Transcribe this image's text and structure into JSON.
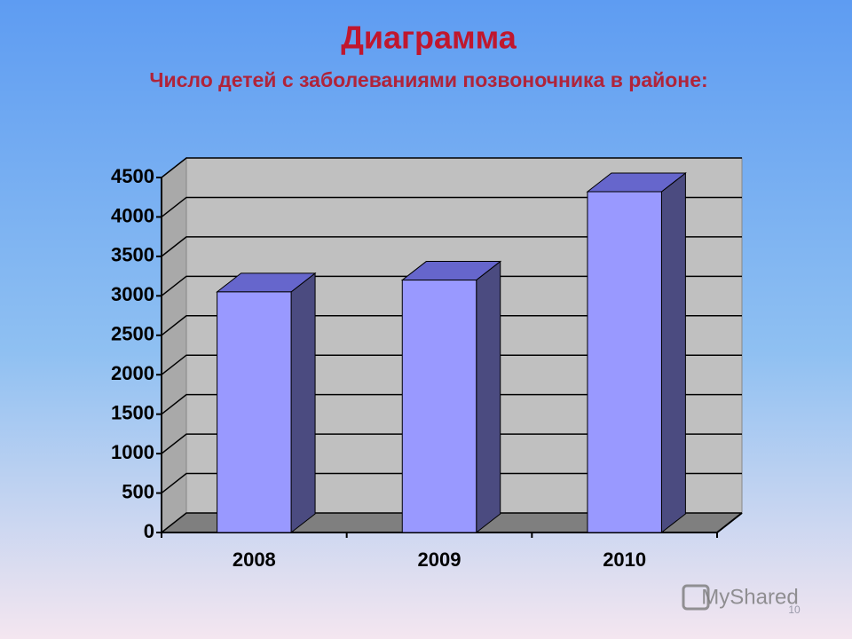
{
  "chart_data": {
    "type": "bar3d",
    "title": "Диаграмма",
    "subtitle": "Число детей  с заболеваниями позвоночника в районе:",
    "categories": [
      "2008",
      "2009",
      "2010"
    ],
    "values": [
      3050,
      3200,
      4320
    ],
    "color": "#9999ff",
    "ylim": [
      0,
      4500
    ],
    "yticks": [
      0,
      500,
      1000,
      1500,
      2000,
      2500,
      3000,
      3500,
      4000,
      4500
    ],
    "grid": true
  },
  "watermark": "MyShared",
  "slide_number": "10"
}
